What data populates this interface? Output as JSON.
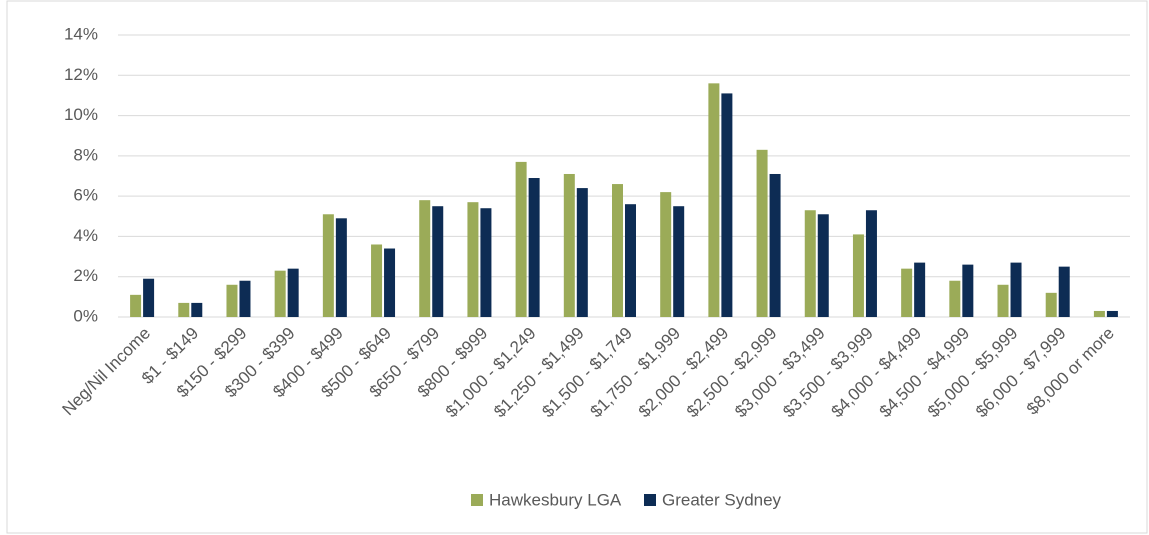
{
  "chart_data": {
    "type": "bar",
    "categories": [
      "Neg/Nil Income",
      "$1 - $149",
      "$150 - $299",
      "$300 - $399",
      "$400 - $499",
      "$500 - $649",
      "$650 - $799",
      "$800 - $999",
      "$1,000 - $1,249",
      "$1,250 - $1,499",
      "$1,500 - $1,749",
      "$1,750 - $1,999",
      "$2,000 - $2,499",
      "$2,500 - $2,999",
      "$3,000 - $3,499",
      "$3,500 - $3,999",
      "$4,000 - $4,499",
      "$4,500 - $4,999",
      "$5,000 - $5,999",
      "$6,000 - $7,999",
      "$8,000 or more"
    ],
    "series": [
      {
        "name": "Hawkesbury LGA",
        "color": "#9bab58",
        "values": [
          1.1,
          0.7,
          1.6,
          2.3,
          5.1,
          3.6,
          5.8,
          5.7,
          7.7,
          7.1,
          6.6,
          6.2,
          11.6,
          8.3,
          5.3,
          4.1,
          2.4,
          1.8,
          1.6,
          1.2,
          0.3
        ]
      },
      {
        "name": "Greater Sydney",
        "color": "#0d2c54",
        "values": [
          1.9,
          0.7,
          1.8,
          2.4,
          4.9,
          3.4,
          5.5,
          5.4,
          6.9,
          6.4,
          5.6,
          5.5,
          11.1,
          7.1,
          5.1,
          5.3,
          2.7,
          2.6,
          2.7,
          2.5,
          0.3
        ]
      }
    ],
    "ylim": [
      0,
      14
    ],
    "yticks": [
      {
        "value": 0,
        "label": "0%"
      },
      {
        "value": 2,
        "label": "2%"
      },
      {
        "value": 4,
        "label": "4%"
      },
      {
        "value": 6,
        "label": "6%"
      },
      {
        "value": 8,
        "label": "8%"
      },
      {
        "value": 10,
        "label": "10%"
      },
      {
        "value": 12,
        "label": "12%"
      },
      {
        "value": 14,
        "label": "14%"
      }
    ],
    "grid": true,
    "legend": "bottom"
  }
}
